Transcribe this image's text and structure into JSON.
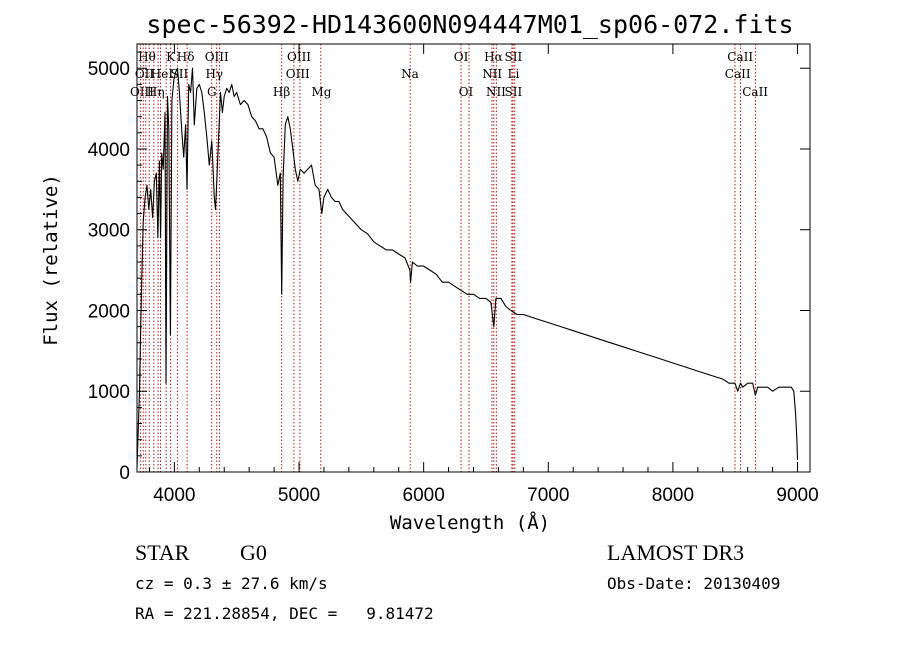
{
  "chart_data": {
    "type": "line",
    "title": "spec-56392-HD143600N094447M01_sp06-072.fits",
    "xlabel": "Wavelength (Å)",
    "ylabel": "Flux (relative)",
    "xlim": [
      3700,
      9100
    ],
    "ylim": [
      0,
      5300
    ],
    "xticks": [
      4000,
      5000,
      6000,
      7000,
      8000,
      9000
    ],
    "yticks": [
      0,
      1000,
      2000,
      3000,
      4000,
      5000
    ],
    "series": [
      {
        "name": "flux",
        "x": [
          3700,
          3720,
          3735,
          3750,
          3765,
          3780,
          3795,
          3810,
          3825,
          3840,
          3855,
          3868,
          3880,
          3889,
          3898,
          3910,
          3925,
          3933,
          3945,
          3955,
          3968,
          3980,
          3995,
          4010,
          4025,
          4040,
          4060,
          4075,
          4090,
          4101,
          4115,
          4130,
          4145,
          4160,
          4180,
          4200,
          4220,
          4240,
          4260,
          4280,
          4300,
          4320,
          4330,
          4340,
          4355,
          4370,
          4385,
          4400,
          4420,
          4440,
          4460,
          4480,
          4500,
          4530,
          4560,
          4590,
          4620,
          4650,
          4680,
          4710,
          4740,
          4770,
          4800,
          4830,
          4850,
          4861,
          4872,
          4890,
          4910,
          4930,
          4950,
          4970,
          4990,
          5010,
          5040,
          5070,
          5100,
          5130,
          5160,
          5183,
          5200,
          5230,
          5260,
          5290,
          5320,
          5350,
          5380,
          5410,
          5440,
          5470,
          5500,
          5550,
          5600,
          5650,
          5700,
          5750,
          5800,
          5850,
          5890,
          5895,
          5910,
          5950,
          6000,
          6050,
          6100,
          6150,
          6200,
          6250,
          6300,
          6350,
          6400,
          6450,
          6500,
          6540,
          6563,
          6580,
          6620,
          6660,
          6700,
          6750,
          6800,
          6900,
          7000,
          7100,
          7200,
          7300,
          7400,
          7500,
          7600,
          7700,
          7800,
          7900,
          8000,
          8100,
          8200,
          8300,
          8400,
          8450,
          8498,
          8520,
          8542,
          8560,
          8600,
          8640,
          8662,
          8680,
          8720,
          8760,
          8800,
          8850,
          8900,
          8950,
          8970,
          8985,
          8995,
          9000
        ],
        "y": [
          50,
          1000,
          2200,
          3100,
          3400,
          3550,
          3250,
          3500,
          3150,
          3600,
          3700,
          2900,
          3850,
          2900,
          3950,
          3750,
          4450,
          1100,
          4650,
          4250,
          1700,
          4600,
          4850,
          4950,
          5000,
          4700,
          4200,
          3900,
          4300,
          3500,
          4800,
          4700,
          5000,
          4300,
          4750,
          4800,
          4700,
          4450,
          4150,
          3800,
          4100,
          3400,
          3250,
          3600,
          4150,
          4700,
          4450,
          4650,
          4750,
          4700,
          4800,
          4650,
          4700,
          4550,
          4600,
          4550,
          4400,
          4350,
          4250,
          4250,
          4150,
          3950,
          3900,
          3550,
          3700,
          2200,
          3650,
          4300,
          4400,
          4250,
          4000,
          3750,
          3600,
          3750,
          3700,
          3750,
          3800,
          3550,
          3500,
          3200,
          3400,
          3500,
          3400,
          3350,
          3350,
          3250,
          3200,
          3150,
          3100,
          3050,
          3000,
          2950,
          2850,
          2800,
          2750,
          2750,
          2700,
          2650,
          2500,
          2350,
          2600,
          2550,
          2550,
          2500,
          2450,
          2350,
          2350,
          2300,
          2250,
          2200,
          2200,
          2150,
          2150,
          2100,
          1800,
          2150,
          2150,
          2050,
          2000,
          1950,
          1950,
          1900,
          1850,
          1800,
          1750,
          1700,
          1650,
          1600,
          1550,
          1500,
          1450,
          1400,
          1350,
          1300,
          1250,
          1200,
          1150,
          1100,
          1100,
          1000,
          1100,
          1050,
          1100,
          1100,
          950,
          1050,
          1050,
          1050,
          1000,
          1050,
          1050,
          1050,
          1000,
          700,
          400,
          150
        ]
      }
    ],
    "lines_labels_top": [
      "Hθ",
      "K",
      "Hδ",
      "OIII",
      "OIII",
      "OI",
      "Hα",
      "SII",
      "CaII"
    ],
    "lines_labels_mid": [
      "OII",
      "HeI",
      "SII",
      "Hγ",
      "OIII",
      "Na",
      "NII",
      "Li",
      "CaII"
    ],
    "lines_labels_low": [
      "OIII",
      "Hη",
      "G",
      "Hβ",
      "Mg",
      "OI",
      "NII",
      "SII",
      "CaII"
    ],
    "annotations": {
      "obj_type": "STAR",
      "subclass": "G0",
      "survey": "LAMOST DR3",
      "cz": "cz = 0.3 ± 27.6 km/s",
      "obs_date": "Obs-Date: 20130409",
      "coords": "RA = 221.28854, DEC =   9.81472"
    },
    "colors": {
      "spectrum": "#000000",
      "line_markers": "#aa0000",
      "axes": "#000000"
    }
  }
}
